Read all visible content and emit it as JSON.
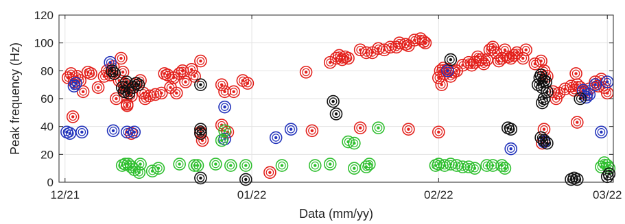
{
  "chart_data": {
    "type": "scatter",
    "xlabel": "Data (mm/yy)",
    "ylabel": "Peak frequency (Hz)",
    "x_ticks": [
      {
        "x": 0,
        "label": "12/21"
      },
      {
        "x": 31,
        "label": "01/22"
      },
      {
        "x": 62,
        "label": "02/22"
      },
      {
        "x": 90,
        "label": "03/22"
      }
    ],
    "xlim": [
      -1,
      91
    ],
    "ylim": [
      0,
      120
    ],
    "y_ticks": [
      0,
      20,
      40,
      60,
      80,
      100,
      120
    ],
    "grid": true,
    "x_unit": "days since 12/21",
    "colors": {
      "red": "#e3211c",
      "blue": "#2233bb",
      "green": "#2fbf2f",
      "black": "#111111"
    },
    "series": [
      {
        "color": "red",
        "points": [
          [
            0.5,
            75
          ],
          [
            1,
            78
          ],
          [
            1.5,
            72
          ],
          [
            2,
            76
          ],
          [
            2.5,
            73
          ],
          [
            3,
            65
          ],
          [
            3.8,
            79
          ],
          [
            4.3,
            78
          ],
          [
            5.5,
            68
          ],
          [
            6.5,
            76
          ],
          [
            7,
            80
          ],
          [
            7.5,
            77
          ],
          [
            8,
            83
          ],
          [
            8.5,
            60
          ],
          [
            9,
            73
          ],
          [
            9.3,
            89
          ],
          [
            9.6,
            79
          ],
          [
            9.8,
            70
          ],
          [
            10,
            65
          ],
          [
            10.3,
            55
          ],
          [
            10.7,
            67
          ],
          [
            11,
            62
          ],
          [
            11.5,
            70
          ],
          [
            12.5,
            73
          ],
          [
            13,
            64
          ],
          [
            13.3,
            60
          ],
          [
            14,
            62
          ],
          [
            15,
            63
          ],
          [
            16,
            64
          ],
          [
            16.5,
            78
          ],
          [
            17,
            77
          ],
          [
            17.5,
            68
          ],
          [
            18,
            75
          ],
          [
            18.5,
            64
          ],
          [
            19,
            78
          ],
          [
            19.5,
            80
          ],
          [
            20,
            72
          ],
          [
            21,
            81
          ],
          [
            21.5,
            76
          ],
          [
            22.5,
            87
          ],
          [
            22.5,
            36
          ],
          [
            22.8,
            30
          ],
          [
            26,
            70
          ],
          [
            26.5,
            65
          ],
          [
            28,
            65
          ],
          [
            29.5,
            73
          ],
          [
            30.3,
            71
          ],
          [
            26,
            41
          ],
          [
            27,
            36
          ],
          [
            10.3,
            56
          ],
          [
            11,
            35
          ],
          [
            1.3,
            47
          ],
          [
            40,
            79
          ],
          [
            44,
            86
          ],
          [
            45,
            89
          ],
          [
            45.5,
            91
          ],
          [
            46,
            88
          ],
          [
            46.5,
            90
          ],
          [
            47,
            89
          ],
          [
            49,
            95
          ],
          [
            50,
            93
          ],
          [
            51,
            93
          ],
          [
            52,
            96
          ],
          [
            53,
            95
          ],
          [
            54,
            97
          ],
          [
            55,
            97
          ],
          [
            55.5,
            100
          ],
          [
            56.5,
            99
          ],
          [
            57,
            98
          ],
          [
            58,
            102
          ],
          [
            59,
            103
          ],
          [
            59.5,
            101
          ],
          [
            59.8,
            100
          ],
          [
            62,
            75
          ],
          [
            62.3,
            80
          ],
          [
            62.5,
            70
          ],
          [
            62.8,
            82
          ],
          [
            63,
            78
          ],
          [
            63.5,
            81
          ],
          [
            64,
            76
          ],
          [
            64.5,
            79
          ],
          [
            65,
            80
          ],
          [
            66,
            84
          ],
          [
            67,
            86
          ],
          [
            67.5,
            84
          ],
          [
            68,
            86
          ],
          [
            68.5,
            90
          ],
          [
            69,
            88
          ],
          [
            69.5,
            85
          ],
          [
            70,
            88
          ],
          [
            70.5,
            95
          ],
          [
            71,
            97
          ],
          [
            71.5,
            93
          ],
          [
            72,
            87
          ],
          [
            72.5,
            89
          ],
          [
            73,
            95
          ],
          [
            73.5,
            90
          ],
          [
            74,
            89
          ],
          [
            74.5,
            91
          ],
          [
            75,
            93
          ],
          [
            76,
            89
          ],
          [
            76.5,
            95
          ],
          [
            78,
            85
          ],
          [
            79,
            87
          ],
          [
            79.5,
            80
          ],
          [
            80,
            76
          ],
          [
            81,
            65
          ],
          [
            81.5,
            60
          ],
          [
            82,
            64
          ],
          [
            83,
            67
          ],
          [
            84,
            69
          ],
          [
            84.5,
            66
          ],
          [
            85,
            70
          ],
          [
            85.5,
            68
          ],
          [
            86,
            65
          ],
          [
            86.5,
            63
          ],
          [
            87,
            67
          ],
          [
            88,
            72
          ],
          [
            88.5,
            69
          ],
          [
            89,
            74
          ],
          [
            89.5,
            68
          ],
          [
            90,
            64
          ],
          [
            85,
            43
          ],
          [
            84.8,
            78
          ],
          [
            79.2,
            28
          ],
          [
            79.5,
            38
          ],
          [
            41,
            37
          ],
          [
            49,
            39
          ],
          [
            57,
            38
          ],
          [
            62,
            36
          ],
          [
            34,
            7
          ]
        ]
      },
      {
        "color": "blue",
        "points": [
          [
            0.3,
            36
          ],
          [
            0.8,
            35
          ],
          [
            1.5,
            69
          ],
          [
            1.8,
            71
          ],
          [
            2.8,
            36
          ],
          [
            7.5,
            86
          ],
          [
            8,
            37
          ],
          [
            10.3,
            36
          ],
          [
            11.5,
            36
          ],
          [
            26.5,
            54
          ],
          [
            26.5,
            31
          ],
          [
            35,
            32
          ],
          [
            37.5,
            38
          ],
          [
            74,
            24
          ],
          [
            79.5,
            29
          ],
          [
            86,
            66
          ],
          [
            86.5,
            61
          ],
          [
            87,
            63
          ],
          [
            88,
            70
          ],
          [
            89,
            36
          ],
          [
            90,
            72
          ],
          [
            63.5,
            80
          ]
        ]
      },
      {
        "color": "green",
        "points": [
          [
            9.5,
            12
          ],
          [
            10,
            13
          ],
          [
            10.5,
            13
          ],
          [
            11,
            11
          ],
          [
            11.5,
            9
          ],
          [
            12.3,
            7
          ],
          [
            12.5,
            13
          ],
          [
            14.5,
            8
          ],
          [
            15.5,
            10
          ],
          [
            19,
            13
          ],
          [
            21.5,
            12
          ],
          [
            22,
            12
          ],
          [
            25,
            13
          ],
          [
            26,
            30
          ],
          [
            26.5,
            37
          ],
          [
            27.5,
            12
          ],
          [
            30,
            12
          ],
          [
            36,
            12
          ],
          [
            41.5,
            12
          ],
          [
            44,
            13
          ],
          [
            47,
            29
          ],
          [
            48,
            28
          ],
          [
            48,
            10
          ],
          [
            50,
            11
          ],
          [
            50.5,
            13
          ],
          [
            52,
            39
          ],
          [
            61.5,
            12
          ],
          [
            62,
            13
          ],
          [
            63,
            12
          ],
          [
            64,
            13
          ],
          [
            65,
            12
          ],
          [
            66,
            11
          ],
          [
            67,
            11
          ],
          [
            68,
            10
          ],
          [
            70,
            12
          ],
          [
            71,
            12
          ],
          [
            72.5,
            12
          ],
          [
            73,
            10
          ],
          [
            89,
            11
          ],
          [
            89.5,
            14
          ],
          [
            90,
            12
          ],
          [
            90.3,
            10
          ]
        ]
      },
      {
        "color": "black",
        "points": [
          [
            7.8,
            80
          ],
          [
            8.2,
            78
          ],
          [
            9.5,
            68
          ],
          [
            9.8,
            65
          ],
          [
            10.2,
            72
          ],
          [
            10.6,
            64
          ],
          [
            11.3,
            68
          ],
          [
            11.8,
            71
          ],
          [
            12.2,
            70
          ],
          [
            22.5,
            70
          ],
          [
            22.5,
            38
          ],
          [
            22.5,
            35
          ],
          [
            22.5,
            3
          ],
          [
            30,
            2
          ],
          [
            44.5,
            58
          ],
          [
            45,
            49
          ],
          [
            64,
            88
          ],
          [
            73.5,
            39
          ],
          [
            74,
            38
          ],
          [
            78.5,
            70
          ],
          [
            78.8,
            75
          ],
          [
            79,
            77
          ],
          [
            79.2,
            68
          ],
          [
            79.5,
            73
          ],
          [
            79.8,
            72
          ],
          [
            80,
            65
          ],
          [
            79.2,
            57
          ],
          [
            79.5,
            60
          ],
          [
            79,
            32
          ],
          [
            79.5,
            30
          ],
          [
            80,
            28
          ],
          [
            84,
            2
          ],
          [
            84.5,
            3
          ],
          [
            85,
            2
          ],
          [
            90,
            4
          ],
          [
            90.3,
            6
          ],
          [
            85.5,
            60
          ]
        ]
      }
    ]
  }
}
